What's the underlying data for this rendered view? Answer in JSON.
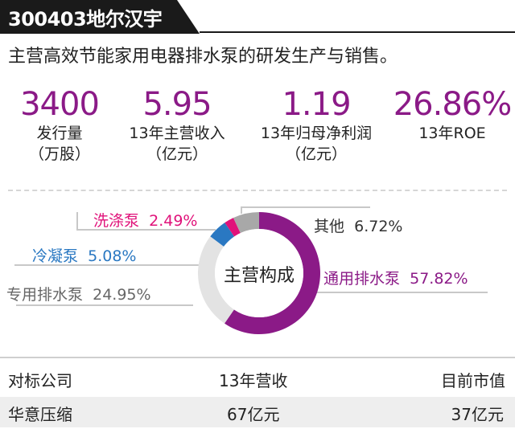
{
  "header": {
    "title": "300403地尔汉宇"
  },
  "business_desc": "主营高效节能家用电器排水泵的研发生产与销售。",
  "metrics": [
    {
      "value": "3400",
      "label_line1": "发行量",
      "label_line2": "（万股）"
    },
    {
      "value": "5.95",
      "label_line1": "13年主营收入",
      "label_line2": "（亿元）"
    },
    {
      "value": "1.19",
      "label_line1": "13年归母净利润",
      "label_line2": "（亿元）"
    },
    {
      "value": "26.86%",
      "label_line1": "13年ROE",
      "label_line2": ""
    }
  ],
  "chart_data": {
    "type": "pie",
    "title": "",
    "center_label": "主营构成",
    "slices": [
      {
        "name": "通用排水泵",
        "value": 57.82,
        "label": "57.82%",
        "color": "#8b1a87"
      },
      {
        "name": "专用排水泵",
        "value": 24.95,
        "label": "24.95%",
        "color": "#e3e3e3"
      },
      {
        "name": "冷凝泵",
        "value": 5.08,
        "label": "5.08%",
        "color": "#2a78c2"
      },
      {
        "name": "洗涤泵",
        "value": 2.49,
        "label": "2.49%",
        "color": "#e0127a"
      },
      {
        "name": "其他",
        "value": 6.72,
        "label": "6.72%",
        "color": "#a8a8a8"
      }
    ]
  },
  "colors": {
    "accent": "#8b1a87",
    "header_bg": "#1a1a1a"
  },
  "table": {
    "headers": [
      "对标公司",
      "13年营收",
      "目前市值"
    ],
    "rows": [
      [
        "华意压缩",
        "67亿元",
        "37亿元"
      ]
    ]
  }
}
